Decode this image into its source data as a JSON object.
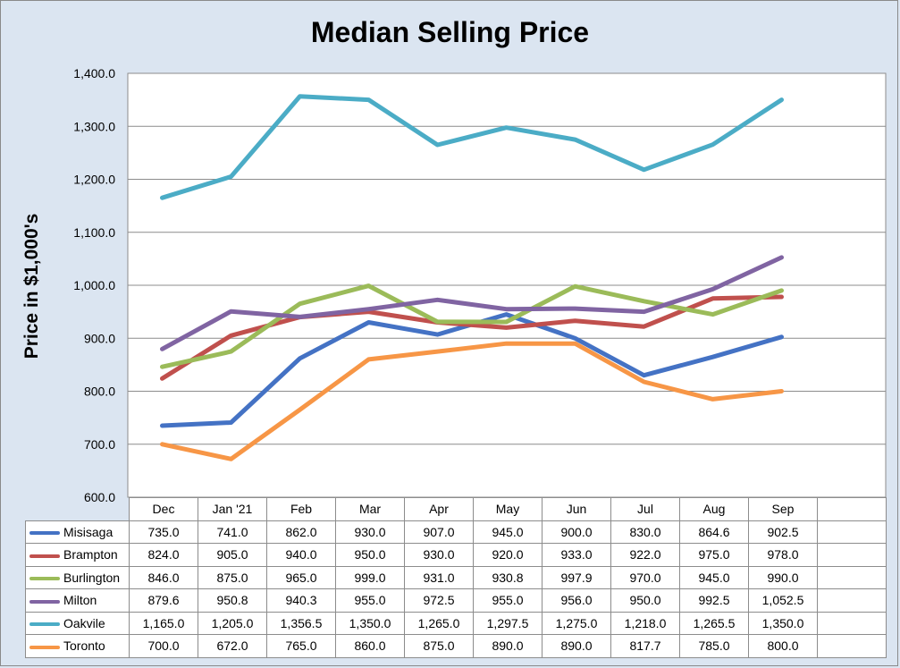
{
  "chart_data": {
    "type": "line",
    "title": "Median Selling Price",
    "ylabel": "Price in $1,000's",
    "xlabel": "",
    "categories": [
      "Dec",
      "Jan '21",
      "Feb",
      "Mar",
      "Apr",
      "May",
      "Jun",
      "Jul",
      "Aug",
      "Sep"
    ],
    "ylim": [
      600,
      1400
    ],
    "yticks": [
      600,
      700,
      800,
      900,
      1000,
      1100,
      1200,
      1300,
      1400
    ],
    "ytick_labels": [
      "600.0",
      "700.0",
      "800.0",
      "900.0",
      "1,000.0",
      "1,100.0",
      "1,200.0",
      "1,300.0",
      "1,400.0"
    ],
    "grid": true,
    "legend": "data table below chart",
    "series": [
      {
        "name": "Misisaga",
        "color": "#4472c4",
        "values": [
          735.0,
          741.0,
          862.0,
          930.0,
          907.0,
          945.0,
          900.0,
          830.0,
          864.6,
          902.5
        ],
        "labels": [
          "735.0",
          "741.0",
          "862.0",
          "930.0",
          "907.0",
          "945.0",
          "900.0",
          "830.0",
          "864.6",
          "902.5"
        ]
      },
      {
        "name": "Brampton",
        "color": "#c0504d",
        "values": [
          824.0,
          905.0,
          940.0,
          950.0,
          930.0,
          920.0,
          933.0,
          922.0,
          975.0,
          978.0
        ],
        "labels": [
          "824.0",
          "905.0",
          "940.0",
          "950.0",
          "930.0",
          "920.0",
          "933.0",
          "922.0",
          "975.0",
          "978.0"
        ]
      },
      {
        "name": "Burlington",
        "color": "#9bbb59",
        "values": [
          846.0,
          875.0,
          965.0,
          999.0,
          931.0,
          930.8,
          997.9,
          970.0,
          945.0,
          990.0
        ],
        "labels": [
          "846.0",
          "875.0",
          "965.0",
          "999.0",
          "931.0",
          "930.8",
          "997.9",
          "970.0",
          "945.0",
          "990.0"
        ]
      },
      {
        "name": "Milton",
        "color": "#8064a2",
        "values": [
          879.6,
          950.8,
          940.3,
          955.0,
          972.5,
          955.0,
          956.0,
          950.0,
          992.5,
          1052.5
        ],
        "labels": [
          "879.6",
          "950.8",
          "940.3",
          "955.0",
          "972.5",
          "955.0",
          "956.0",
          "950.0",
          "992.5",
          "1,052.5"
        ]
      },
      {
        "name": "Oakvile",
        "color": "#4bacc6",
        "values": [
          1165.0,
          1205.0,
          1356.5,
          1350.0,
          1265.0,
          1297.5,
          1275.0,
          1218.0,
          1265.5,
          1350.0
        ],
        "labels": [
          "1,165.0",
          "1,205.0",
          "1,356.5",
          "1,350.0",
          "1,265.0",
          "1,297.5",
          "1,275.0",
          "1,218.0",
          "1,265.5",
          "1,350.0"
        ]
      },
      {
        "name": "Toronto",
        "color": "#f79646",
        "values": [
          700.0,
          672.0,
          765.0,
          860.0,
          875.0,
          890.0,
          890.0,
          817.7,
          785.0,
          800.0
        ],
        "labels": [
          "700.0",
          "672.0",
          "765.0",
          "860.0",
          "875.0",
          "890.0",
          "890.0",
          "817.7",
          "785.0",
          "800.0"
        ]
      }
    ]
  }
}
